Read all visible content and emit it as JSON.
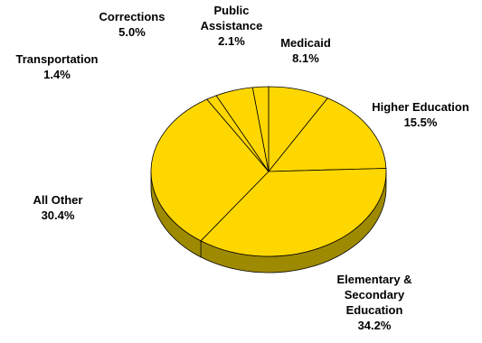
{
  "chart_data": {
    "type": "pie",
    "style": "3d",
    "title": "",
    "slices": [
      {
        "label": "Medicaid",
        "value": 8.1,
        "text": "8.1%"
      },
      {
        "label": "Higher Education",
        "value": 15.5,
        "text": "15.5%"
      },
      {
        "label": "Elementary & Secondary Education",
        "value": 34.2,
        "text": "34.2%"
      },
      {
        "label": "All Other",
        "value": 30.4,
        "text": "30.4%"
      },
      {
        "label": "Transportation",
        "value": 1.4,
        "text": "1.4%"
      },
      {
        "label": "Corrections",
        "value": 5.0,
        "text": "5.0%"
      },
      {
        "label": "Public Assistance",
        "value": 2.1,
        "text": "2.1%"
      }
    ],
    "label_lines": {
      "medicaid": [
        "Medicaid"
      ],
      "higher_ed": [
        "Higher Education"
      ],
      "elem_sec": [
        "Elementary &",
        "Secondary",
        "Education"
      ],
      "all_other": [
        "All Other"
      ],
      "transportation": [
        "Transportation"
      ],
      "corrections": [
        "Corrections"
      ],
      "public_assistance": [
        "Public",
        "Assistance"
      ]
    },
    "colors": {
      "top": "#ffd700",
      "side": "#9e8a00",
      "edge": "#000000"
    },
    "legend": "none"
  }
}
